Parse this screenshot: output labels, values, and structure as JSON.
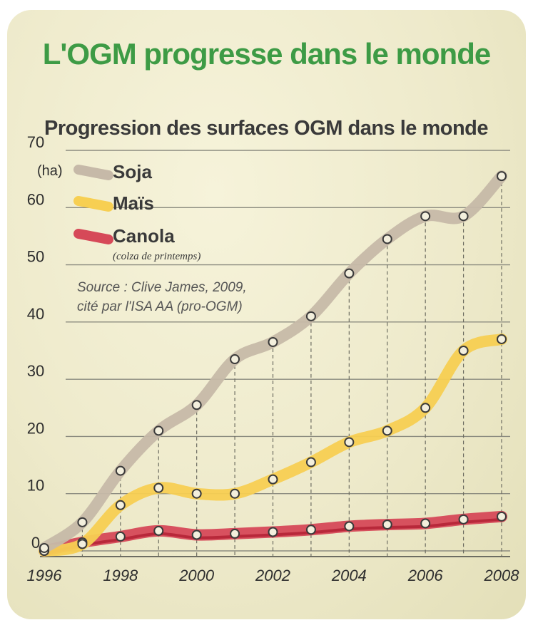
{
  "header": {
    "title": "L'OGM progresse dans le monde"
  },
  "chart_data": {
    "type": "line",
    "title": "Progression des surfaces OGM dans le monde",
    "unit_label": "(ha)",
    "source_lines": [
      "Source : Clive James, 2009,",
      "cité par l'ISA AA (pro-OGM)"
    ],
    "x": [
      1996,
      1997,
      1998,
      1999,
      2000,
      2001,
      2002,
      2003,
      2004,
      2005,
      2006,
      2007,
      2008
    ],
    "x_tick_labels": [
      "1996",
      "1998",
      "2000",
      "2002",
      "2004",
      "2006",
      "2008"
    ],
    "y_ticks": [
      0,
      10,
      20,
      30,
      40,
      50,
      60,
      70
    ],
    "ylim": [
      0,
      70
    ],
    "grid": true,
    "legend_position": "top-left",
    "series": [
      {
        "name": "Soja",
        "color": "#c6b9a8",
        "values": [
          0.5,
          5,
          14,
          21,
          25.5,
          33.5,
          36.5,
          41,
          48.5,
          54.5,
          58.5,
          58.5,
          65.5
        ]
      },
      {
        "name": "Maïs",
        "color": "#f7cf52",
        "values": [
          0,
          1.2,
          8,
          11,
          10,
          10,
          12.5,
          15.5,
          19,
          21,
          25,
          35,
          37
        ]
      },
      {
        "name": "Canola",
        "note": "(colza de printemps)",
        "color": "#d64958",
        "values": [
          0,
          1.5,
          2.5,
          3.5,
          2.8,
          3,
          3.3,
          3.7,
          4.3,
          4.6,
          4.8,
          5.5,
          6
        ]
      }
    ]
  }
}
